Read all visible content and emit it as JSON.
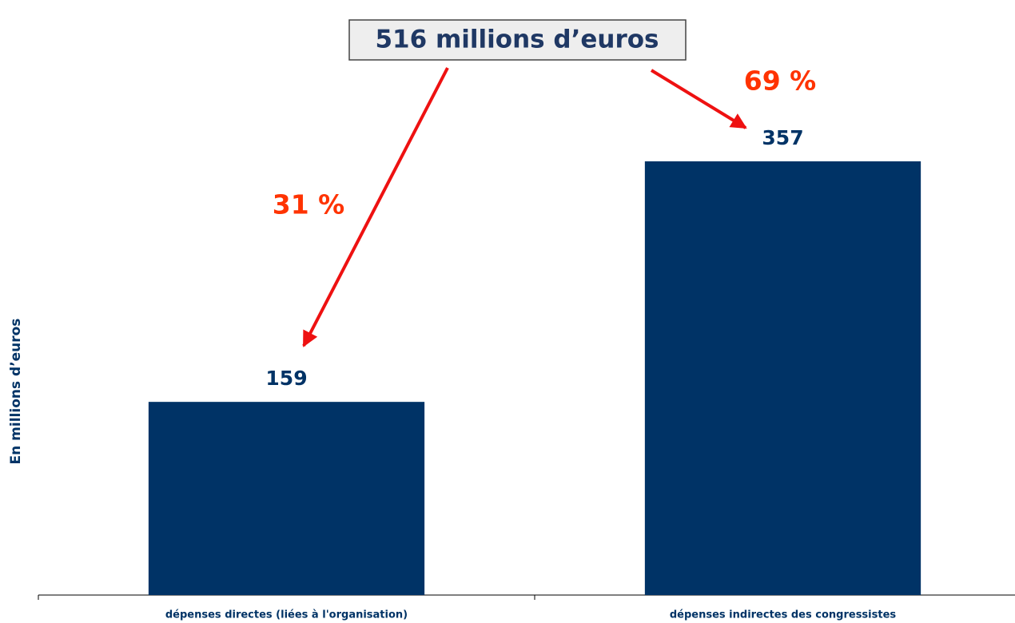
{
  "chart_data": {
    "type": "bar",
    "categories": [
      "dépenses directes (liées à l'organisation)",
      "dépenses indirectes des congressistes"
    ],
    "values": [
      159,
      357
    ],
    "color": "#003366",
    "ylabel": "En millions d’euros",
    "ylim": [
      0,
      400
    ],
    "annotations": {
      "total": "516 millions d’euros",
      "shares": [
        "31 %",
        "69 %"
      ]
    }
  }
}
